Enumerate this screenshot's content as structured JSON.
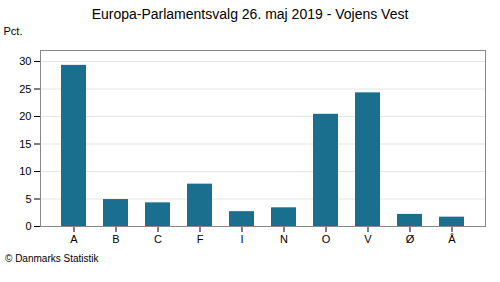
{
  "chart_data": {
    "type": "bar",
    "title": "Europa-Parlamentsvalg 26. maj 2019 - Vojens Vest",
    "categories": [
      "A",
      "B",
      "C",
      "F",
      "I",
      "N",
      "O",
      "V",
      "Ø",
      "Å"
    ],
    "values": [
      29.3,
      4.9,
      4.3,
      7.7,
      2.7,
      3.4,
      20.4,
      24.3,
      2.2,
      1.7
    ],
    "color": "#1a6e8e",
    "ylabel": "Pct.",
    "ylim": [
      0,
      32
    ],
    "yticks": [
      0,
      5,
      10,
      15,
      20,
      25,
      30
    ],
    "grid": true,
    "annotations": [
      "© Danmarks Statistik"
    ]
  }
}
